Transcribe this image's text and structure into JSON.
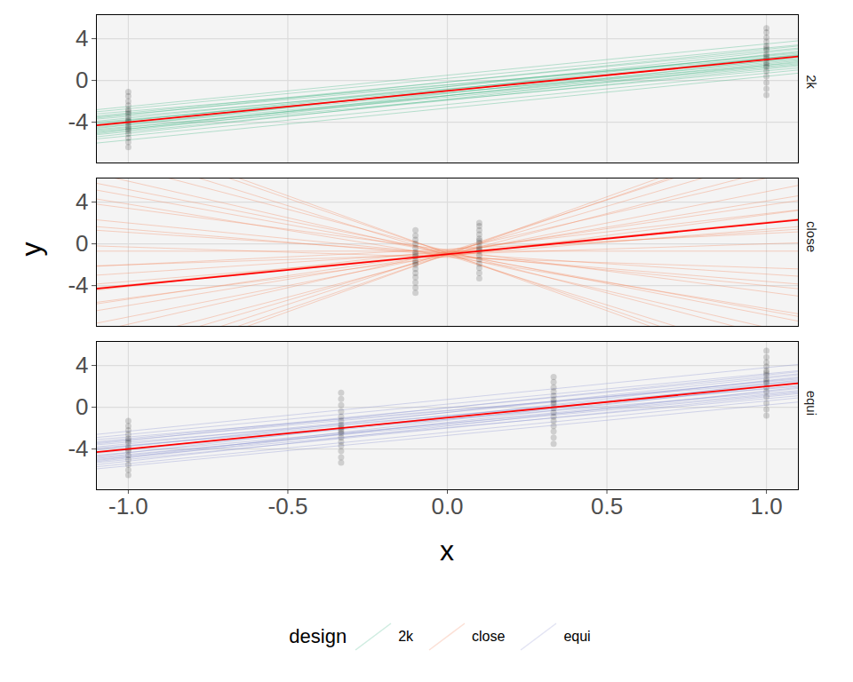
{
  "chart_data": {
    "type": "scatter",
    "x_label": "x",
    "y_label": "y",
    "legend_title": "design",
    "legend": "bottom",
    "grid": true,
    "xlim": [
      -1.1,
      1.1
    ],
    "ylim": [
      -7.9,
      6.3
    ],
    "xticks": [
      {
        "value": -1,
        "label": "-1.0"
      },
      {
        "value": -0.5,
        "label": "-0.5"
      },
      {
        "value": 0,
        "label": "0.0"
      },
      {
        "value": 0.5,
        "label": "0.5"
      },
      {
        "value": 1,
        "label": "1.0"
      }
    ],
    "yticks": [
      -4,
      0,
      4
    ],
    "true_line": {
      "color": "#ff0000",
      "x": [
        -1.1,
        1.1
      ],
      "y": [
        -4.3,
        2.3
      ]
    },
    "line_x": [
      -1.1,
      1.1
    ],
    "series": [
      {
        "name": "2k",
        "color": "#3cb482",
        "lines": [
          [
            -4.3,
            2.3
          ],
          [
            -4.8,
            1.9
          ],
          [
            -3.9,
            2.7
          ],
          [
            -5.2,
            1.4
          ],
          [
            -3.4,
            3.1
          ],
          [
            -4.6,
            2.8
          ],
          [
            -4.0,
            1.7
          ],
          [
            -5.6,
            1.0
          ],
          [
            -3.0,
            3.4
          ],
          [
            -4.4,
            2.0
          ],
          [
            -5.0,
            2.5
          ],
          [
            -3.7,
            2.1
          ],
          [
            -4.9,
            1.2
          ],
          [
            -3.5,
            2.6
          ],
          [
            -5.4,
            1.8
          ],
          [
            -4.2,
            3.0
          ],
          [
            -3.2,
            2.4
          ],
          [
            -4.7,
            1.5
          ],
          [
            -6.0,
            0.7
          ],
          [
            -2.8,
            3.8
          ],
          [
            -4.1,
            2.4
          ],
          [
            -5.1,
            2.2
          ],
          [
            -3.6,
            3.3
          ],
          [
            -4.5,
            1.6
          ]
        ],
        "points": [
          {
            "x": -1,
            "y": [
              -6.4,
              -5.9,
              -5.5,
              -5.1,
              -4.8,
              -4.4,
              -4.1,
              -3.8,
              -3.5,
              -3.2,
              -2.8,
              -2.4,
              -2.0,
              -1.5,
              -1.1,
              -3.0,
              -4.6,
              -3.9
            ]
          },
          {
            "x": 1,
            "y": [
              -1.4,
              -0.8,
              -0.2,
              0.4,
              0.9,
              1.3,
              1.7,
              2.1,
              2.5,
              2.9,
              3.3,
              3.7,
              4.1,
              4.6,
              5.0,
              2.3,
              3.1,
              1.5
            ]
          }
        ]
      },
      {
        "name": "close",
        "color": "#f4845a",
        "lines": [
          [
            11.2,
            -13.0
          ],
          [
            9.35,
            -11.55
          ],
          [
            8.1,
            -9.5
          ],
          [
            6.7,
            -8.7
          ],
          [
            5.8,
            -7.4
          ],
          [
            4.3,
            -6.7
          ],
          [
            3.8,
            -5.0
          ],
          [
            2.3,
            -4.3
          ],
          [
            1.3,
            -3.1
          ],
          [
            -0.2,
            -2.4
          ],
          [
            -0.7,
            -0.7
          ],
          [
            -2.1,
            0.1
          ],
          [
            -3.0,
            1.4
          ],
          [
            -3.85,
            1.65
          ],
          [
            -4.2,
            2.4
          ],
          [
            -4.45,
            3.25
          ],
          [
            -5.6,
            3.2
          ],
          [
            -6.4,
            4.6
          ],
          [
            -7.6,
            5.6
          ],
          [
            -8.4,
            7.0
          ],
          [
            -9.9,
            7.7
          ],
          [
            -10.8,
            9.0
          ],
          [
            -11.8,
            10.2
          ],
          [
            -13.1,
            11.1
          ],
          [
            10.65,
            -12.45
          ],
          [
            -12.55,
            10.55
          ],
          [
            -2.15,
            1.15
          ],
          [
            1.65,
            -3.85
          ],
          [
            -5.75,
            4.15
          ],
          [
            5.15,
            -6.95
          ]
        ],
        "points": [
          {
            "x": -0.1,
            "y": [
              -4.7,
              -4.2,
              -3.7,
              -3.2,
              -2.8,
              -2.4,
              -2.0,
              -1.6,
              -1.2,
              -0.8,
              -0.4,
              0,
              0.4,
              0.8,
              1.3,
              -1.8,
              -1.0
            ]
          },
          {
            "x": 0.1,
            "y": [
              -3.3,
              -2.8,
              -2.3,
              -1.9,
              -1.5,
              -1.1,
              -0.7,
              -0.3,
              0.1,
              0.5,
              0.9,
              1.3,
              1.7,
              2.0,
              -0.5,
              0.3
            ]
          }
        ]
      },
      {
        "name": "equi",
        "color": "#8a91d0",
        "lines": [
          [
            -4.3,
            2.3
          ],
          [
            -4.9,
            1.8
          ],
          [
            -3.8,
            2.8
          ],
          [
            -5.3,
            1.3
          ],
          [
            -3.3,
            3.2
          ],
          [
            -4.7,
            2.9
          ],
          [
            -3.9,
            1.6
          ],
          [
            -5.7,
            0.9
          ],
          [
            -2.9,
            3.5
          ],
          [
            -4.4,
            2.1
          ],
          [
            -5.1,
            2.6
          ],
          [
            -3.6,
            2.0
          ],
          [
            -5.0,
            1.1
          ],
          [
            -3.4,
            2.7
          ],
          [
            -5.5,
            1.9
          ],
          [
            -4.1,
            3.1
          ],
          [
            -3.1,
            2.5
          ],
          [
            -4.8,
            1.4
          ],
          [
            -5.9,
            0.5
          ],
          [
            -2.6,
            4.1
          ],
          [
            -4.0,
            2.4
          ],
          [
            -5.2,
            2.3
          ],
          [
            -3.5,
            3.4
          ],
          [
            -4.6,
            1.5
          ]
        ],
        "points": [
          {
            "x": -1,
            "y": [
              -6.5,
              -6.0,
              -5.5,
              -5.0,
              -4.6,
              -4.2,
              -3.8,
              -3.4,
              -3.0,
              -2.6,
              -2.2,
              -1.8,
              -1.3,
              -4.0,
              -3.2
            ]
          },
          {
            "x": -0.333,
            "y": [
              -5.3,
              -4.8,
              -4.2,
              -3.7,
              -3.3,
              -2.9,
              -2.5,
              -2.1,
              -1.7,
              -1.3,
              -0.9,
              -0.4,
              0.2,
              0.8,
              1.4,
              -2.3,
              -1.9
            ]
          },
          {
            "x": 0.333,
            "y": [
              -3.5,
              -2.9,
              -2.3,
              -1.8,
              -1.3,
              -0.9,
              -0.5,
              -0.1,
              0.3,
              0.7,
              1.1,
              1.5,
              1.9,
              2.4,
              2.9,
              0.5
            ]
          },
          {
            "x": 1,
            "y": [
              -0.8,
              -0.2,
              0.4,
              1.0,
              1.5,
              1.9,
              2.3,
              2.7,
              3.1,
              3.5,
              3.9,
              4.3,
              4.8,
              5.4,
              2.5,
              3.3
            ]
          }
        ]
      }
    ]
  }
}
